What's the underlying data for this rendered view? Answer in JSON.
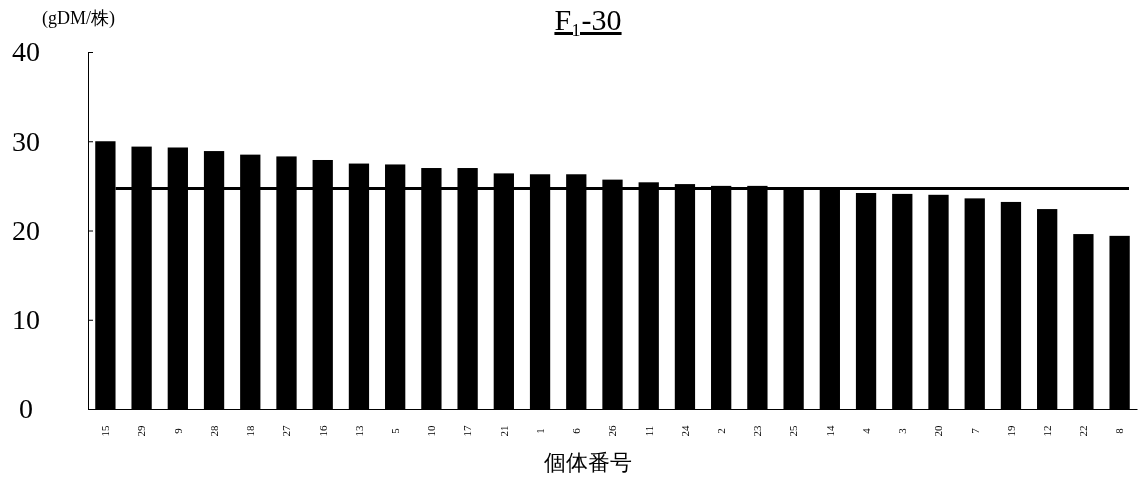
{
  "chart_data": {
    "type": "bar",
    "title": "F₁-30",
    "ylabel": "(gDM/株)",
    "xlabel": "個体番号",
    "categories": [
      "15",
      "29",
      "9",
      "28",
      "18",
      "27",
      "16",
      "13",
      "5",
      "10",
      "17",
      "21",
      "1",
      "6",
      "26",
      "11",
      "24",
      "2",
      "23",
      "25",
      "14",
      "4",
      "3",
      "20",
      "7",
      "19",
      "12",
      "22",
      "8"
    ],
    "values": [
      30.0,
      29.4,
      29.3,
      28.9,
      28.5,
      28.3,
      27.9,
      27.5,
      27.4,
      27.0,
      27.0,
      26.4,
      26.3,
      26.3,
      25.7,
      25.4,
      25.2,
      25.0,
      25.0,
      24.7,
      24.7,
      24.2,
      24.1,
      24.0,
      23.6,
      23.2,
      22.4,
      19.6,
      19.4
    ],
    "color": "#000000",
    "ylim": [
      0,
      40
    ],
    "yticks": [
      0,
      10,
      20,
      30,
      40
    ],
    "ref_lines": [
      {
        "axis": "y",
        "value": 24.7,
        "color": "#000000"
      }
    ]
  }
}
